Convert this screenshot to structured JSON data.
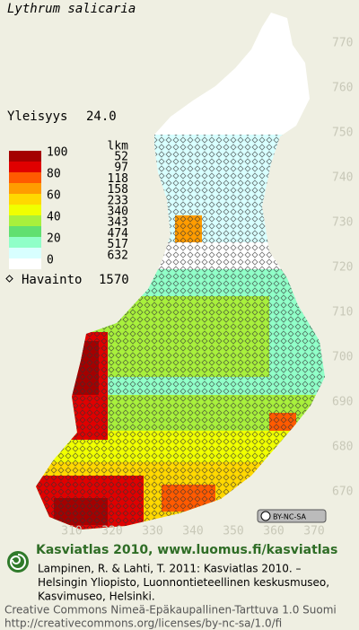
{
  "title": "Lythrum salicaria",
  "frequency": {
    "label": "Yleisyys",
    "value": "24.0"
  },
  "legend": {
    "unit": "lkm",
    "scale_labels": [
      "100",
      "80",
      "60",
      "40",
      "20",
      "0"
    ],
    "colors": [
      "#a40000",
      "#e00000",
      "#ff5a00",
      "#ff9c00",
      "#ffd800",
      "#f0ff00",
      "#a8f03c",
      "#60e070",
      "#90ffc8",
      "#d8ffff",
      "#ffffff"
    ],
    "counts": [
      52,
      97,
      118,
      158,
      233,
      340,
      343,
      474,
      517,
      632
    ]
  },
  "observations": {
    "label": "Havainto",
    "value": 1570
  },
  "y_grid_labels": [
    "770",
    "760",
    "750",
    "740",
    "730",
    "720",
    "710",
    "700",
    "690",
    "680",
    "670"
  ],
  "x_grid_labels": [
    "310",
    "320",
    "330",
    "340",
    "350",
    "360",
    "370"
  ],
  "license_badge": "BY-NC-SA",
  "footer": {
    "heading": "Kasviatlas 2010, www.luomus.fi/kasviatlas",
    "citation": [
      "Lampinen, R. & Lahti, T. 2011: Kasviatlas 2010. –",
      "Helsingin Yliopisto, Luonnontieteellinen keskusmuseo,",
      "Kasvimuseo, Helsinki."
    ],
    "license": [
      "Creative Commons Nimeä-Epäkaupallinen-Tarttuva 1.0 Suomi",
      "http://creativecommons.org/licenses/by-nc-sa/1.0/fi"
    ]
  }
}
